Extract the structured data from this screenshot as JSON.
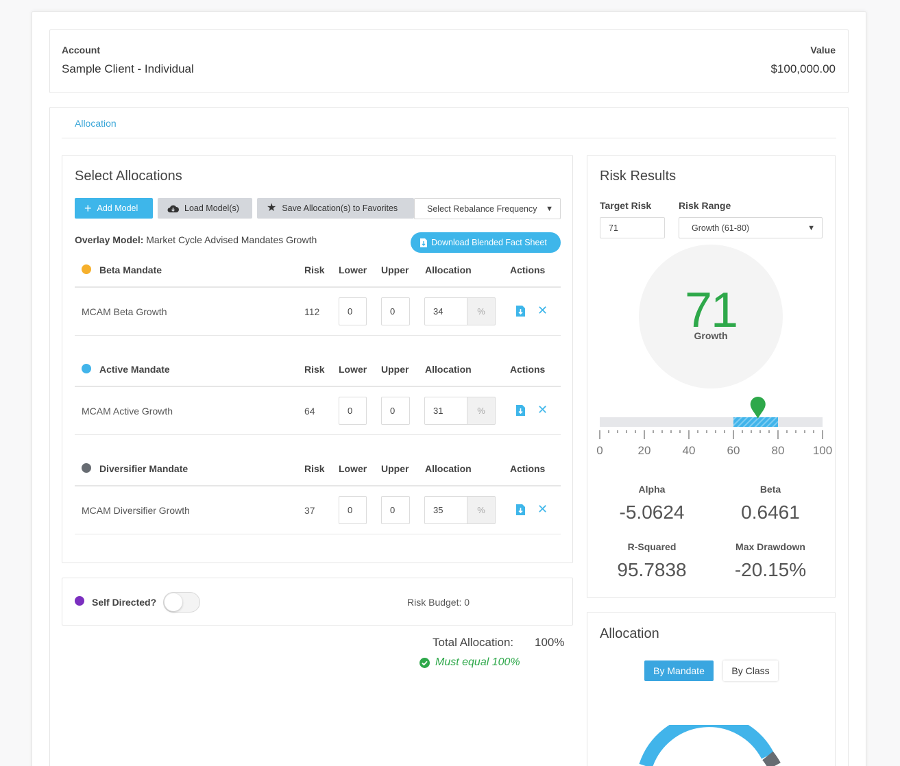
{
  "account": {
    "label": "Account",
    "name": "Sample Client - Individual",
    "value_label": "Value",
    "value": "$100,000.00"
  },
  "tabs": [
    {
      "label": "Allocation"
    }
  ],
  "select_allocations": {
    "title": "Select Allocations",
    "add_model": "Add Model",
    "load_models": "Load Model(s)",
    "save_favorites": "Save Allocation(s) to Favorites",
    "rebalance_select": "Select Rebalance Frequency",
    "overlay_label": "Overlay Model:",
    "overlay_value": "Market Cycle Advised Mandates Growth",
    "download_fact_sheet": "Download Blended Fact Sheet",
    "columns": {
      "risk": "Risk",
      "lower": "Lower",
      "upper": "Upper",
      "allocation": "Allocation",
      "actions": "Actions"
    },
    "mandates": [
      {
        "name": "Beta Mandate",
        "color": "#f6b02c",
        "model": "MCAM Beta Growth",
        "risk": "112",
        "lower": "0",
        "upper": "0",
        "allocation": "34",
        "unit": "%"
      },
      {
        "name": "Active Mandate",
        "color": "#41b4ea",
        "model": "MCAM Active Growth",
        "risk": "64",
        "lower": "0",
        "upper": "0",
        "allocation": "31",
        "unit": "%"
      },
      {
        "name": "Diversifier Mandate",
        "color": "#676c72",
        "model": "MCAM Diversifier Growth",
        "risk": "37",
        "lower": "0",
        "upper": "0",
        "allocation": "35",
        "unit": "%"
      }
    ]
  },
  "self_directed": {
    "label": "Self Directed?",
    "color": "#7b2fbf",
    "risk_budget": "Risk Budget: 0"
  },
  "totals": {
    "label": "Total Allocation:",
    "value": "100%",
    "validation": "Must equal 100%"
  },
  "risk_results": {
    "title": "Risk Results",
    "target_label": "Target Risk",
    "target_value": "71",
    "range_label": "Risk Range",
    "range_value": "Growth (61-80)",
    "score": "71",
    "score_label": "Growth",
    "score_color": "#2ea84a",
    "scale": {
      "min": 0,
      "max": 100,
      "marker": 71,
      "range": [
        60,
        80
      ],
      "ticks": [
        "0",
        "20",
        "40",
        "60",
        "80",
        "100"
      ]
    },
    "stats": [
      {
        "label": "Alpha",
        "value": "-5.0624"
      },
      {
        "label": "Beta",
        "value": "0.6461"
      },
      {
        "label": "R-Squared",
        "value": "95.7838"
      },
      {
        "label": "Max Drawdown",
        "value": "-20.15%"
      }
    ]
  },
  "allocation_panel": {
    "title": "Allocation",
    "by_mandate": "By Mandate",
    "by_class": "By Class"
  },
  "icons": {
    "add": "plus-icon",
    "load": "cloud-download-icon",
    "save": "star-icon",
    "download": "file-download-icon",
    "remove": "close-icon",
    "check": "check-circle-icon"
  }
}
